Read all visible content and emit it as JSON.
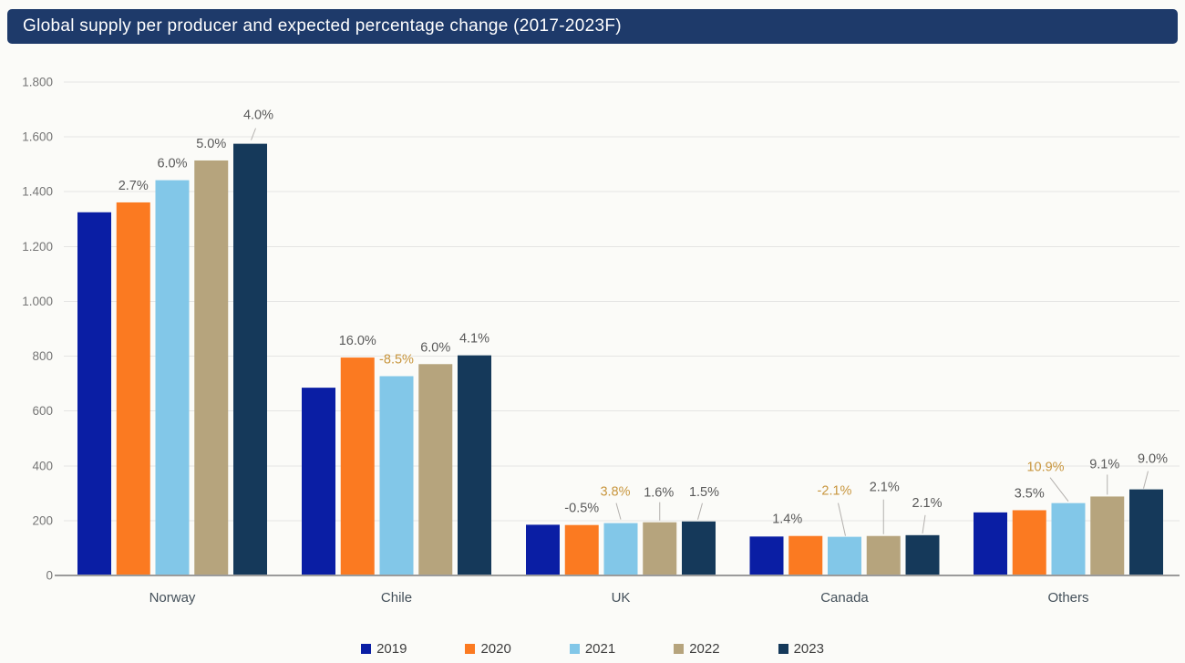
{
  "title": "Global supply per producer and expected percentage change (2017-2023F)",
  "colors": {
    "background": "#fbfbf8",
    "title_bg": "#1e3a6a",
    "title_text": "#ffffff",
    "gridline": "#e4e4e3",
    "axis_line": "#9b9b9b",
    "y_tick_text": "#767676",
    "category_text": "#44505a",
    "pct_label_default": "#595959",
    "pct_label_highlight": "#c8963e",
    "leader_line": "#b3b0ad",
    "legend_text": "#3f3f3f"
  },
  "chart_data": {
    "type": "bar",
    "title": "Global supply per producer and expected percentage change (2017-2023F)",
    "categories": [
      "Norway",
      "Chile",
      "UK",
      "Canada",
      "Others"
    ],
    "xlabel": "",
    "ylabel": "",
    "grid": true,
    "legend_position": "bottom",
    "y_axis": {
      "min": 0,
      "max": 1800,
      "step": 200,
      "tick_labels": [
        "0",
        "200",
        "400",
        "600",
        "800",
        "1.000",
        "1.200",
        "1.400",
        "1.600",
        "1.800"
      ]
    },
    "series": [
      {
        "name": "2019",
        "color": "#0a1ea4",
        "values": [
          1325,
          685,
          185,
          142,
          230
        ],
        "pct_labels": [
          null,
          null,
          null,
          null,
          null
        ],
        "pct_label_colors": [
          "default",
          "default",
          "default",
          "default",
          "default"
        ]
      },
      {
        "name": "2020",
        "color": "#fb7a21",
        "values": [
          1361,
          795,
          184,
          144,
          238
        ],
        "pct_labels": [
          "2.7%",
          "16.0%",
          "-0.5%",
          "1.4%",
          "3.5%"
        ],
        "pct_label_colors": [
          "default",
          "default",
          "default",
          "default",
          "default"
        ]
      },
      {
        "name": "2021",
        "color": "#82c7e8",
        "values": [
          1442,
          727,
          191,
          141,
          264
        ],
        "pct_labels": [
          "6.0%",
          "-8.5%",
          "3.8%",
          "-2.1%",
          "10.9%"
        ],
        "pct_label_colors": [
          "default",
          "highlight",
          "highlight",
          "highlight",
          "highlight"
        ]
      },
      {
        "name": "2022",
        "color": "#b6a47d",
        "values": [
          1514,
          771,
          194,
          144,
          288
        ],
        "pct_labels": [
          "5.0%",
          "6.0%",
          "1.6%",
          "2.1%",
          "9.1%"
        ],
        "pct_label_colors": [
          "default",
          "default",
          "default",
          "default",
          "default"
        ]
      },
      {
        "name": "2023",
        "color": "#15395a",
        "values": [
          1575,
          803,
          197,
          147,
          314
        ],
        "pct_labels": [
          "4.0%",
          "4.1%",
          "1.5%",
          "2.1%",
          "9.0%"
        ],
        "pct_label_colors": [
          "default",
          "default",
          "default",
          "default",
          "default"
        ]
      }
    ]
  }
}
